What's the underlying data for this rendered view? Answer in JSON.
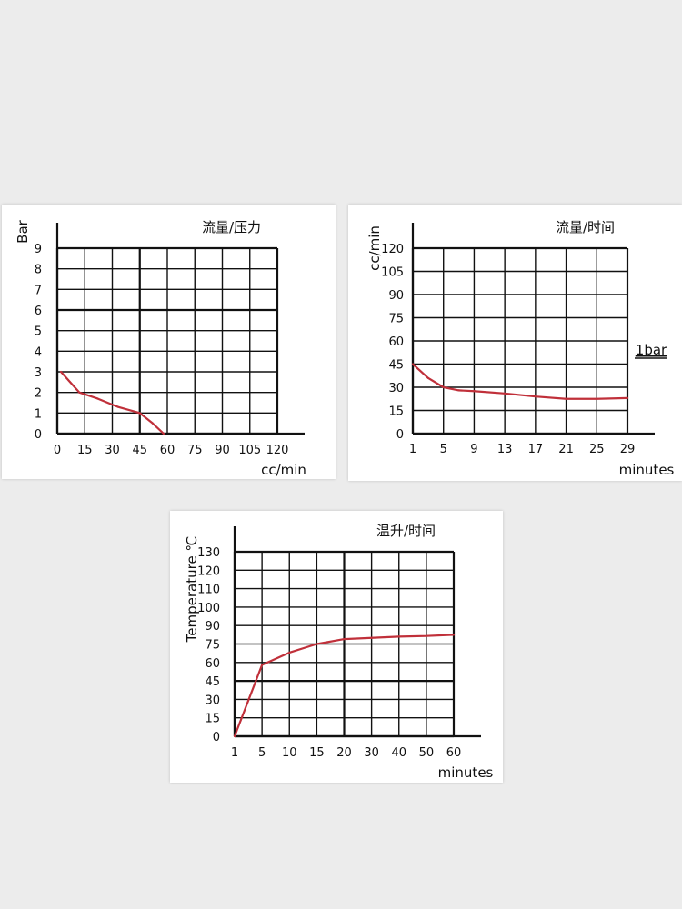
{
  "chart_data": [
    {
      "type": "line",
      "title": "流量/压力",
      "xlabel": "cc/min",
      "ylabel": "Bar",
      "x_ticks": [
        "0",
        "15",
        "30",
        "45",
        "60",
        "75",
        "90",
        "105",
        "120"
      ],
      "y_ticks": [
        "0",
        "1",
        "2",
        "3",
        "4",
        "5",
        "6",
        "7",
        "8",
        "9"
      ],
      "xlim": [
        0,
        120
      ],
      "ylim": [
        0,
        9
      ],
      "grid": true,
      "series": [
        {
          "color": "#c0303a",
          "x": [
            2,
            12,
            22,
            33,
            45,
            52,
            58
          ],
          "y": [
            3,
            2,
            1.7,
            1.3,
            1,
            0.5,
            0
          ]
        }
      ]
    },
    {
      "type": "line",
      "title": "流量/时间",
      "xlabel": "minutes",
      "ylabel": "cc/min",
      "annotation": "1bar",
      "x_ticks": [
        "1",
        "5",
        "9",
        "13",
        "17",
        "21",
        "25",
        "29"
      ],
      "y_ticks": [
        "0",
        "15",
        "30",
        "45",
        "60",
        "75",
        "90",
        "105",
        "120"
      ],
      "xlim": [
        1,
        29
      ],
      "ylim": [
        0,
        120
      ],
      "grid": true,
      "series": [
        {
          "color": "#c0303a",
          "x": [
            1,
            3,
            5,
            7,
            9,
            13,
            17,
            21,
            25,
            29
          ],
          "y": [
            45,
            36,
            30,
            28,
            27.5,
            26,
            24,
            22.5,
            22.5,
            23
          ]
        }
      ]
    },
    {
      "type": "line",
      "title": "温升/时间",
      "xlabel": "minutes",
      "ylabel": "Temperature ℃",
      "x_ticks": [
        "1",
        "5",
        "10",
        "15",
        "20",
        "30",
        "40",
        "50",
        "60"
      ],
      "y_ticks": [
        "0",
        "15",
        "30",
        "45",
        "60",
        "75",
        "90",
        "100",
        "110",
        "120",
        "130"
      ],
      "grid": true,
      "series": [
        {
          "color": "#c0303a",
          "x": [
            "1",
            "5",
            "10",
            "15",
            "20",
            "30",
            "40",
            "50",
            "60"
          ],
          "y": [
            0,
            58,
            68,
            75,
            79,
            80,
            81,
            81.5,
            82.5
          ]
        }
      ]
    }
  ]
}
